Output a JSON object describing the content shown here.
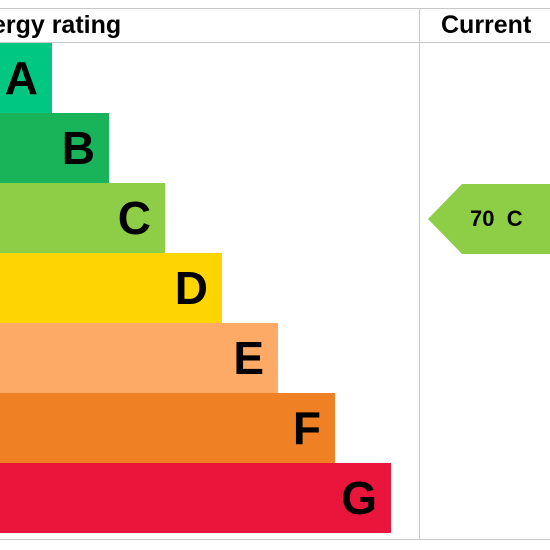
{
  "headers": {
    "rating": "Energy rating",
    "current": "Current"
  },
  "chart_data": {
    "type": "bar",
    "title": "",
    "categories": [
      "A",
      "B",
      "C",
      "D",
      "E",
      "F",
      "G"
    ],
    "bands": [
      {
        "letter": "A",
        "color": "#00c781"
      },
      {
        "letter": "B",
        "color": "#19b459"
      },
      {
        "letter": "C",
        "color": "#8dce46"
      },
      {
        "letter": "D",
        "color": "#ffd500"
      },
      {
        "letter": "E",
        "color": "#fcaa65"
      },
      {
        "letter": "F",
        "color": "#ef8023"
      },
      {
        "letter": "G",
        "color": "#e9153b"
      }
    ],
    "current": {
      "score": 70,
      "band": "C",
      "label": "70  C",
      "color": "#8dce46"
    }
  }
}
